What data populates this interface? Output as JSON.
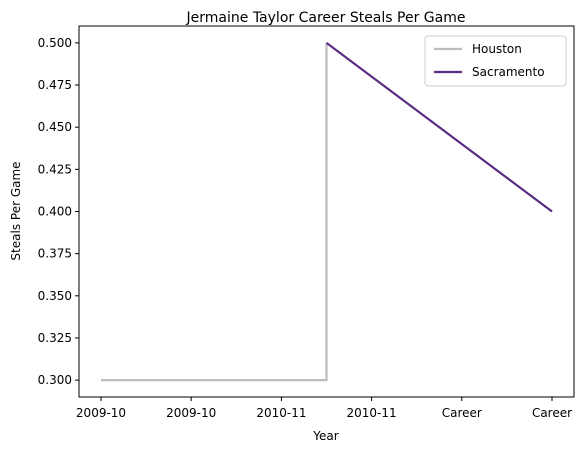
{
  "chart_data": {
    "type": "line",
    "title": "Jermaine Taylor  Career Steals Per Game",
    "xlabel": "Year",
    "ylabel": "Steals Per Game",
    "categories": [
      "2009-10",
      "2009-10",
      "2010-11",
      "2010-11",
      "Career",
      "Career"
    ],
    "ylim": [
      0.29,
      0.51
    ],
    "yticks": [
      0.3,
      0.325,
      0.35,
      0.375,
      0.4,
      0.425,
      0.45,
      0.475,
      0.5
    ],
    "ytick_labels": [
      "0.300",
      "0.325",
      "0.350",
      "0.375",
      "0.400",
      "0.425",
      "0.450",
      "0.475",
      "0.500"
    ],
    "grid": false,
    "legend_position": "top-right",
    "series": [
      {
        "name": "Houston",
        "color": "#bdbdbd",
        "points": [
          {
            "x": 0,
            "y": 0.3
          },
          {
            "x": 2.5,
            "y": 0.3
          },
          {
            "x": 2.5,
            "y": 0.5
          }
        ]
      },
      {
        "name": "Sacramento",
        "color": "#5b2d82",
        "points": [
          {
            "x": 2.5,
            "y": 0.5
          },
          {
            "x": 5,
            "y": 0.4
          }
        ]
      }
    ]
  }
}
